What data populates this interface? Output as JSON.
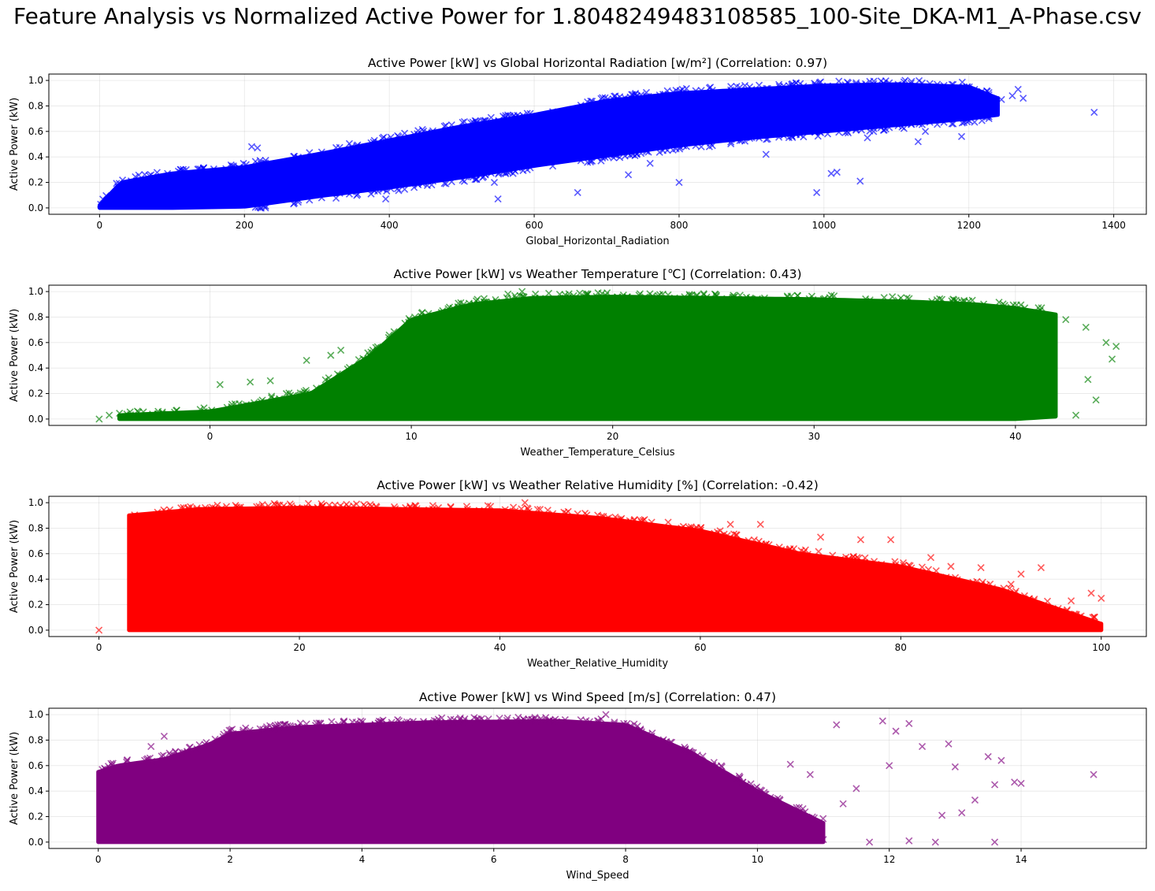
{
  "suptitle": "Feature Analysis vs Normalized Active Power for 1.8048249483108585_100-Site_DKA-M1_A-Phase.csv",
  "chart_data": [
    {
      "type": "scatter",
      "title": "Active Power [kW] vs Global Horizontal Radiation [w/m²] (Correlation: 0.97)",
      "xlabel": "Global_Horizontal_Radiation",
      "ylabel": "Active Power (kW)",
      "color": "#0000ff",
      "marker": "x",
      "grid": true,
      "xlim": [
        -70,
        1445
      ],
      "ylim": [
        -0.05,
        1.05
      ],
      "xticks": [
        0,
        200,
        400,
        600,
        800,
        1000,
        1200,
        1400
      ],
      "yticks": [
        0.0,
        0.2,
        0.4,
        0.6,
        0.8,
        1.0
      ],
      "dense_envelope": [
        {
          "x": 0,
          "low": 0.0,
          "high": 0.02
        },
        {
          "x": 30,
          "low": 0.0,
          "high": 0.2
        },
        {
          "x": 100,
          "low": 0.0,
          "high": 0.27
        },
        {
          "x": 200,
          "low": 0.01,
          "high": 0.32
        },
        {
          "x": 300,
          "low": 0.09,
          "high": 0.42
        },
        {
          "x": 400,
          "low": 0.16,
          "high": 0.53
        },
        {
          "x": 500,
          "low": 0.24,
          "high": 0.64
        },
        {
          "x": 600,
          "low": 0.33,
          "high": 0.73
        },
        {
          "x": 700,
          "low": 0.41,
          "high": 0.84
        },
        {
          "x": 800,
          "low": 0.49,
          "high": 0.9
        },
        {
          "x": 900,
          "low": 0.55,
          "high": 0.93
        },
        {
          "x": 1000,
          "low": 0.6,
          "high": 0.96
        },
        {
          "x": 1100,
          "low": 0.65,
          "high": 0.97
        },
        {
          "x": 1200,
          "low": 0.7,
          "high": 0.95
        },
        {
          "x": 1240,
          "low": 0.73,
          "high": 0.86
        }
      ],
      "outliers": [
        {
          "x": 210,
          "y": 0.48
        },
        {
          "x": 218,
          "y": 0.47
        },
        {
          "x": 550,
          "y": 0.07
        },
        {
          "x": 545,
          "y": 0.2
        },
        {
          "x": 660,
          "y": 0.12
        },
        {
          "x": 800,
          "y": 0.2
        },
        {
          "x": 990,
          "y": 0.12
        },
        {
          "x": 1010,
          "y": 0.27
        },
        {
          "x": 1018,
          "y": 0.28
        },
        {
          "x": 1050,
          "y": 0.21
        },
        {
          "x": 1130,
          "y": 0.52
        },
        {
          "x": 1190,
          "y": 0.56
        },
        {
          "x": 1260,
          "y": 0.88
        },
        {
          "x": 1268,
          "y": 0.93
        },
        {
          "x": 1275,
          "y": 0.86
        },
        {
          "x": 1373,
          "y": 0.75
        },
        {
          "x": 1112,
          "y": 1.0
        },
        {
          "x": 920,
          "y": 0.42
        },
        {
          "x": 1060,
          "y": 0.55
        },
        {
          "x": 1140,
          "y": 0.6
        },
        {
          "x": 730,
          "y": 0.26
        },
        {
          "x": 760,
          "y": 0.35
        },
        {
          "x": 395,
          "y": 0.07
        },
        {
          "x": 1245,
          "y": 0.85
        }
      ]
    },
    {
      "type": "scatter",
      "title": "Active Power [kW] vs Weather Temperature [℃] (Correlation: 0.43)",
      "xlabel": "Weather_Temperature_Celsius",
      "ylabel": "Active Power (kW)",
      "color": "#008000",
      "marker": "x",
      "grid": true,
      "xlim": [
        -8,
        46.5
      ],
      "ylim": [
        -0.05,
        1.05
      ],
      "xticks": [
        0,
        10,
        20,
        30,
        40
      ],
      "yticks": [
        0.0,
        0.2,
        0.4,
        0.6,
        0.8,
        1.0
      ],
      "dense_envelope": [
        {
          "x": -4.5,
          "low": 0.0,
          "high": 0.03
        },
        {
          "x": 0,
          "low": 0.0,
          "high": 0.06
        },
        {
          "x": 5,
          "low": 0.0,
          "high": 0.2
        },
        {
          "x": 8,
          "low": 0.0,
          "high": 0.5
        },
        {
          "x": 10,
          "low": 0.0,
          "high": 0.78
        },
        {
          "x": 13,
          "low": 0.0,
          "high": 0.9
        },
        {
          "x": 16,
          "low": 0.0,
          "high": 0.95
        },
        {
          "x": 20,
          "low": 0.0,
          "high": 0.96
        },
        {
          "x": 25,
          "low": 0.0,
          "high": 0.95
        },
        {
          "x": 30,
          "low": 0.0,
          "high": 0.94
        },
        {
          "x": 35,
          "low": 0.0,
          "high": 0.92
        },
        {
          "x": 38,
          "low": 0.0,
          "high": 0.9
        },
        {
          "x": 40,
          "low": 0.0,
          "high": 0.87
        },
        {
          "x": 42,
          "low": 0.02,
          "high": 0.82
        }
      ],
      "outliers": [
        {
          "x": -5.5,
          "y": 0.0
        },
        {
          "x": -5.0,
          "y": 0.03
        },
        {
          "x": 0.5,
          "y": 0.27
        },
        {
          "x": 4.8,
          "y": 0.46
        },
        {
          "x": 6,
          "y": 0.5
        },
        {
          "x": 6.5,
          "y": 0.54
        },
        {
          "x": 15.5,
          "y": 1.0
        },
        {
          "x": 14.8,
          "y": 0.98
        },
        {
          "x": 43.5,
          "y": 0.72
        },
        {
          "x": 44.5,
          "y": 0.6
        },
        {
          "x": 45,
          "y": 0.57
        },
        {
          "x": 44.8,
          "y": 0.47
        },
        {
          "x": 43,
          "y": 0.03
        },
        {
          "x": 44,
          "y": 0.15
        },
        {
          "x": 43.6,
          "y": 0.31
        },
        {
          "x": 42.5,
          "y": 0.78
        },
        {
          "x": 3,
          "y": 0.3
        },
        {
          "x": 2,
          "y": 0.29
        }
      ]
    },
    {
      "type": "scatter",
      "title": "Active Power [kW] vs Weather Relative Humidity [%] (Correlation: -0.42)",
      "xlabel": "Weather_Relative_Humidity",
      "ylabel": "Active Power (kW)",
      "color": "#ff0000",
      "marker": "x",
      "grid": true,
      "xlim": [
        -5,
        104.5
      ],
      "ylim": [
        -0.05,
        1.05
      ],
      "xticks": [
        0,
        20,
        40,
        60,
        80,
        100
      ],
      "yticks": [
        0.0,
        0.2,
        0.4,
        0.6,
        0.8,
        1.0
      ],
      "dense_envelope": [
        {
          "x": 3,
          "low": 0.0,
          "high": 0.9
        },
        {
          "x": 10,
          "low": 0.0,
          "high": 0.95
        },
        {
          "x": 20,
          "low": 0.0,
          "high": 0.96
        },
        {
          "x": 30,
          "low": 0.0,
          "high": 0.95
        },
        {
          "x": 40,
          "low": 0.0,
          "high": 0.94
        },
        {
          "x": 50,
          "low": 0.0,
          "high": 0.88
        },
        {
          "x": 60,
          "low": 0.0,
          "high": 0.78
        },
        {
          "x": 70,
          "low": 0.0,
          "high": 0.6
        },
        {
          "x": 80,
          "low": 0.0,
          "high": 0.5
        },
        {
          "x": 90,
          "low": 0.0,
          "high": 0.32
        },
        {
          "x": 100,
          "low": 0.0,
          "high": 0.05
        }
      ],
      "outliers": [
        {
          "x": 0,
          "y": 0.0
        },
        {
          "x": 3.2,
          "y": 0.5
        },
        {
          "x": 42.5,
          "y": 1.0
        },
        {
          "x": 63,
          "y": 0.83
        },
        {
          "x": 66,
          "y": 0.83
        },
        {
          "x": 72,
          "y": 0.73
        },
        {
          "x": 76,
          "y": 0.71
        },
        {
          "x": 79,
          "y": 0.71
        },
        {
          "x": 85,
          "y": 0.5
        },
        {
          "x": 88,
          "y": 0.49
        },
        {
          "x": 94,
          "y": 0.49
        },
        {
          "x": 99,
          "y": 0.29
        },
        {
          "x": 100,
          "y": 0.25
        },
        {
          "x": 97,
          "y": 0.23
        },
        {
          "x": 92,
          "y": 0.44
        },
        {
          "x": 83,
          "y": 0.57
        },
        {
          "x": 91,
          "y": 0.36
        }
      ]
    },
    {
      "type": "scatter",
      "title": "Active Power [kW] vs Wind Speed [m/s] (Correlation: 0.47)",
      "xlabel": "Wind_Speed",
      "ylabel": "Active Power (kW)",
      "color": "#800080",
      "marker": "x",
      "grid": true,
      "xlim": [
        -0.75,
        15.9
      ],
      "ylim": [
        -0.05,
        1.05
      ],
      "xticks": [
        0,
        2,
        4,
        6,
        8,
        10,
        12,
        14
      ],
      "yticks": [
        0.0,
        0.2,
        0.4,
        0.6,
        0.8,
        1.0
      ],
      "dense_envelope": [
        {
          "x": 0,
          "low": 0.0,
          "high": 0.55
        },
        {
          "x": 0.3,
          "low": 0.0,
          "high": 0.6
        },
        {
          "x": 1,
          "low": 0.0,
          "high": 0.65
        },
        {
          "x": 1.7,
          "low": 0.0,
          "high": 0.77
        },
        {
          "x": 2,
          "low": 0.0,
          "high": 0.85
        },
        {
          "x": 3,
          "low": 0.0,
          "high": 0.9
        },
        {
          "x": 5,
          "low": 0.0,
          "high": 0.94
        },
        {
          "x": 7,
          "low": 0.0,
          "high": 0.95
        },
        {
          "x": 8,
          "low": 0.0,
          "high": 0.92
        },
        {
          "x": 9,
          "low": 0.0,
          "high": 0.7
        },
        {
          "x": 10,
          "low": 0.0,
          "high": 0.4
        },
        {
          "x": 11,
          "low": 0.0,
          "high": 0.15
        }
      ],
      "outliers": [
        {
          "x": 7.7,
          "y": 1.0
        },
        {
          "x": 11.9,
          "y": 0.95
        },
        {
          "x": 12.3,
          "y": 0.93
        },
        {
          "x": 11.2,
          "y": 0.92
        },
        {
          "x": 12.1,
          "y": 0.87
        },
        {
          "x": 12.9,
          "y": 0.77
        },
        {
          "x": 12.5,
          "y": 0.75
        },
        {
          "x": 13.5,
          "y": 0.67
        },
        {
          "x": 13.7,
          "y": 0.64
        },
        {
          "x": 13.0,
          "y": 0.59
        },
        {
          "x": 15.1,
          "y": 0.53
        },
        {
          "x": 13.9,
          "y": 0.47
        },
        {
          "x": 14.0,
          "y": 0.46
        },
        {
          "x": 13.6,
          "y": 0.45
        },
        {
          "x": 13.3,
          "y": 0.33
        },
        {
          "x": 13.1,
          "y": 0.23
        },
        {
          "x": 12.8,
          "y": 0.21
        },
        {
          "x": 13.6,
          "y": 0.0
        },
        {
          "x": 12.7,
          "y": 0.0
        },
        {
          "x": 12.3,
          "y": 0.01
        },
        {
          "x": 11.7,
          "y": 0.0
        },
        {
          "x": 11.5,
          "y": 0.42
        },
        {
          "x": 10.8,
          "y": 0.53
        },
        {
          "x": 10.5,
          "y": 0.61
        },
        {
          "x": 11.3,
          "y": 0.3
        },
        {
          "x": 12.0,
          "y": 0.6
        },
        {
          "x": 1.0,
          "y": 0.83
        },
        {
          "x": 0.8,
          "y": 0.75
        },
        {
          "x": 11.0,
          "y": 0.02
        },
        {
          "x": 10.4,
          "y": 0.05
        }
      ]
    }
  ]
}
